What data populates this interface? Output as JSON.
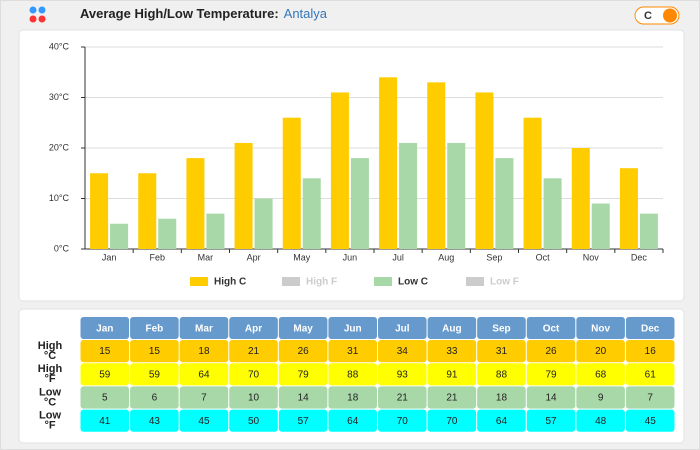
{
  "header": {
    "title": "Average High/Low Temperature:",
    "city": "Antalya",
    "toggle": "C"
  },
  "chart_data": {
    "type": "bar",
    "categories": [
      "Jan",
      "Feb",
      "Mar",
      "Apr",
      "May",
      "Jun",
      "Jul",
      "Aug",
      "Sep",
      "Oct",
      "Nov",
      "Dec"
    ],
    "series": [
      {
        "color": "#ffcc00",
        "values": [
          15,
          15,
          18,
          21,
          26,
          31,
          34,
          33,
          31,
          26,
          20,
          16
        ]
      },
      {
        "color": "#a8d8a8",
        "values": [
          5,
          6,
          7,
          10,
          14,
          18,
          21,
          21,
          18,
          14,
          9,
          7
        ]
      }
    ],
    "legend": [
      {
        "name": "High C",
        "color": "#ffcc00",
        "enabled": true
      },
      {
        "name": "High F",
        "color": "#cccccc",
        "enabled": false
      },
      {
        "name": "Low C",
        "color": "#a8d8a8",
        "enabled": true
      },
      {
        "name": "Low F",
        "color": "#cccccc",
        "enabled": false
      }
    ],
    "ylim": [
      0,
      40
    ],
    "yticks": [
      {
        "value": 0,
        "label": "0°C"
      },
      {
        "value": 10,
        "label": "10°C"
      },
      {
        "value": 20,
        "label": "20°C"
      },
      {
        "value": 30,
        "label": "30°C"
      },
      {
        "value": 40,
        "label": "40°C"
      }
    ],
    "grid": true
  },
  "table": {
    "columns": [
      "Jan",
      "Feb",
      "Mar",
      "Apr",
      "May",
      "Jun",
      "Jul",
      "Aug",
      "Sep",
      "Oct",
      "Nov",
      "Dec"
    ],
    "header_color": "#6699cc",
    "rows": [
      {
        "label": [
          "High",
          "°C"
        ],
        "color": "#ffcc00",
        "values": [
          15,
          15,
          18,
          21,
          26,
          31,
          34,
          33,
          31,
          26,
          20,
          16
        ]
      },
      {
        "label": [
          "High",
          "°F"
        ],
        "color": "#ffff00",
        "values": [
          59,
          59,
          64,
          70,
          79,
          88,
          93,
          91,
          88,
          79,
          68,
          61
        ]
      },
      {
        "label": [
          "Low",
          "°C"
        ],
        "color": "#a8d8a8",
        "values": [
          5,
          6,
          7,
          10,
          14,
          18,
          21,
          21,
          18,
          14,
          9,
          7
        ]
      },
      {
        "label": [
          "Low",
          "°F"
        ],
        "color": "#00ffff",
        "values": [
          41,
          43,
          45,
          50,
          57,
          64,
          70,
          70,
          64,
          57,
          48,
          45
        ]
      }
    ]
  }
}
